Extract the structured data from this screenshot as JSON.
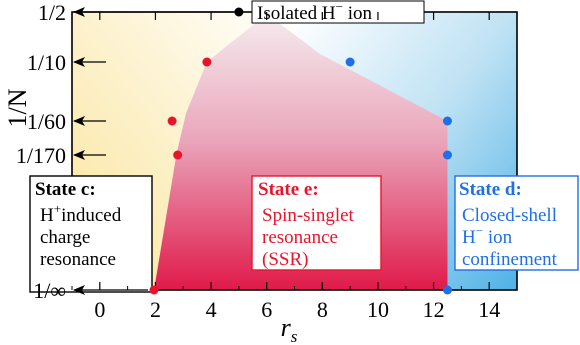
{
  "chart_data": {
    "type": "scatter",
    "xlabel": "r",
    "xlabel_sub": "s",
    "ylabel": "1/N",
    "xlim": [
      -1,
      15
    ],
    "x_ticks": [
      {
        "value": 0,
        "label": "0"
      },
      {
        "value": 2,
        "label": "2"
      },
      {
        "value": 4,
        "label": "4"
      },
      {
        "value": 6,
        "label": "6"
      },
      {
        "value": 8,
        "label": "8"
      },
      {
        "value": 10,
        "label": "10"
      },
      {
        "value": 12,
        "label": "12"
      },
      {
        "value": 14,
        "label": "14"
      }
    ],
    "y_categories": [
      "1/∞",
      "1/170",
      "1/60",
      "1/10",
      "1/2"
    ],
    "colors": {
      "state_c": "#000000",
      "state_e": "#e8142c",
      "state_d": "#1f6fe6",
      "isolated": "#000000",
      "ssr_region_top": "#f4e4ea",
      "ssr_region_bottom": "#e0214e",
      "left_region": "#fbe7a0",
      "right_region": "#5cb8e8"
    },
    "series": [
      {
        "key": "state_e",
        "points": [
          {
            "x": 1.95,
            "y": "1/∞"
          },
          {
            "x": 2.8,
            "y": "1/170"
          },
          {
            "x": 2.6,
            "y": "1/60"
          },
          {
            "x": 3.85,
            "y": "1/10"
          }
        ]
      },
      {
        "key": "state_d",
        "points": [
          {
            "x": 12.5,
            "y": "1/∞"
          },
          {
            "x": 12.5,
            "y": "1/170"
          },
          {
            "x": 12.5,
            "y": "1/60"
          },
          {
            "x": 9.0,
            "y": "1/10"
          }
        ]
      },
      {
        "key": "isolated",
        "points": [
          {
            "x": 5.0,
            "y": "1/2"
          }
        ]
      }
    ],
    "annotations": {
      "isolated": {
        "text": "Isolated H",
        "sup": "−",
        "tail": " ion"
      },
      "state_c": {
        "title": "State c:",
        "line1_pre": "H",
        "line1_sup": "+",
        "line1_post": "induced",
        "line2": "charge",
        "line3": "resonance"
      },
      "state_e": {
        "title": "State e:",
        "line1": "Spin-singlet",
        "line2": "resonance",
        "line3": "(SSR)"
      },
      "state_d": {
        "title": "State d:",
        "line1": "Closed-shell",
        "line2_pre": "H",
        "line2_sup": "−",
        "line2_post": " ion",
        "line3": "confinement"
      }
    }
  }
}
